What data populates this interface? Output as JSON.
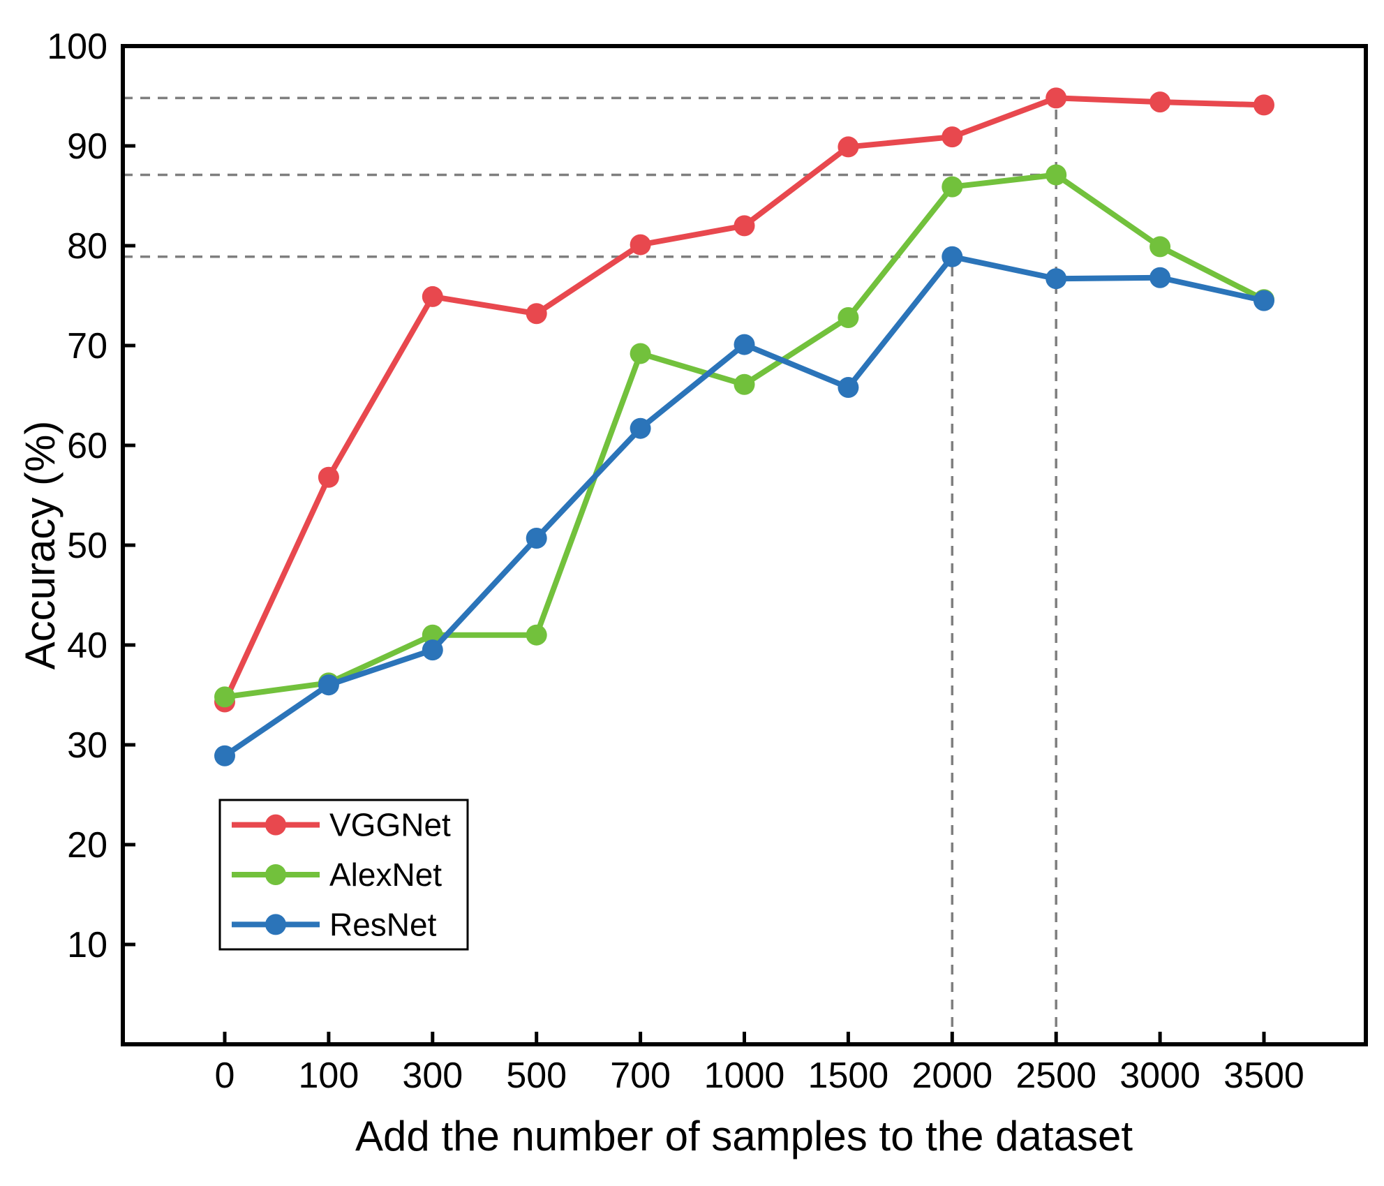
{
  "chart_data": {
    "type": "line",
    "title": "",
    "xlabel": "Add the number of samples to the dataset",
    "ylabel": "Accuracy (%)",
    "categories": [
      0,
      100,
      300,
      500,
      700,
      1000,
      1500,
      2000,
      2500,
      3000,
      3500
    ],
    "x_tick_labels": [
      "0",
      "100",
      "300",
      "500",
      "700",
      "1000",
      "1500",
      "2000",
      "2500",
      "3000",
      "3500"
    ],
    "y_ticks": [
      10,
      20,
      30,
      40,
      50,
      60,
      70,
      80,
      90,
      100
    ],
    "ylim": [
      0,
      100
    ],
    "grid": false,
    "legend_position": "lower-left",
    "legend_entries": [
      "VGGNet",
      "AlexNet",
      "ResNet"
    ],
    "series": [
      {
        "name": "VGGNet",
        "color": "#e8484e",
        "values": [
          34.3,
          56.8,
          74.9,
          73.2,
          80.1,
          82.0,
          89.9,
          90.9,
          94.8,
          94.4,
          94.1
        ]
      },
      {
        "name": "AlexNet",
        "color": "#72c13c",
        "values": [
          34.8,
          36.2,
          41.0,
          41.0,
          69.2,
          66.1,
          72.8,
          85.9,
          87.1,
          79.9,
          74.6
        ]
      },
      {
        "name": "ResNet",
        "color": "#2b74b9",
        "values": [
          28.9,
          36.0,
          39.5,
          50.7,
          61.7,
          70.1,
          65.8,
          78.9,
          76.7,
          76.8,
          74.5
        ]
      }
    ],
    "annotations": {
      "dash_color": "#7f7f7f",
      "h_dashed": [
        {
          "y": 94.8,
          "x_end": 2500
        },
        {
          "y": 87.1,
          "x_end": 2500
        },
        {
          "y": 78.9,
          "x_end": 2000
        }
      ],
      "v_dashed": [
        {
          "x": 2000,
          "y_top": 78.9
        },
        {
          "x": 2500,
          "y_top": 94.8
        }
      ]
    },
    "frame_color": "#000000"
  }
}
